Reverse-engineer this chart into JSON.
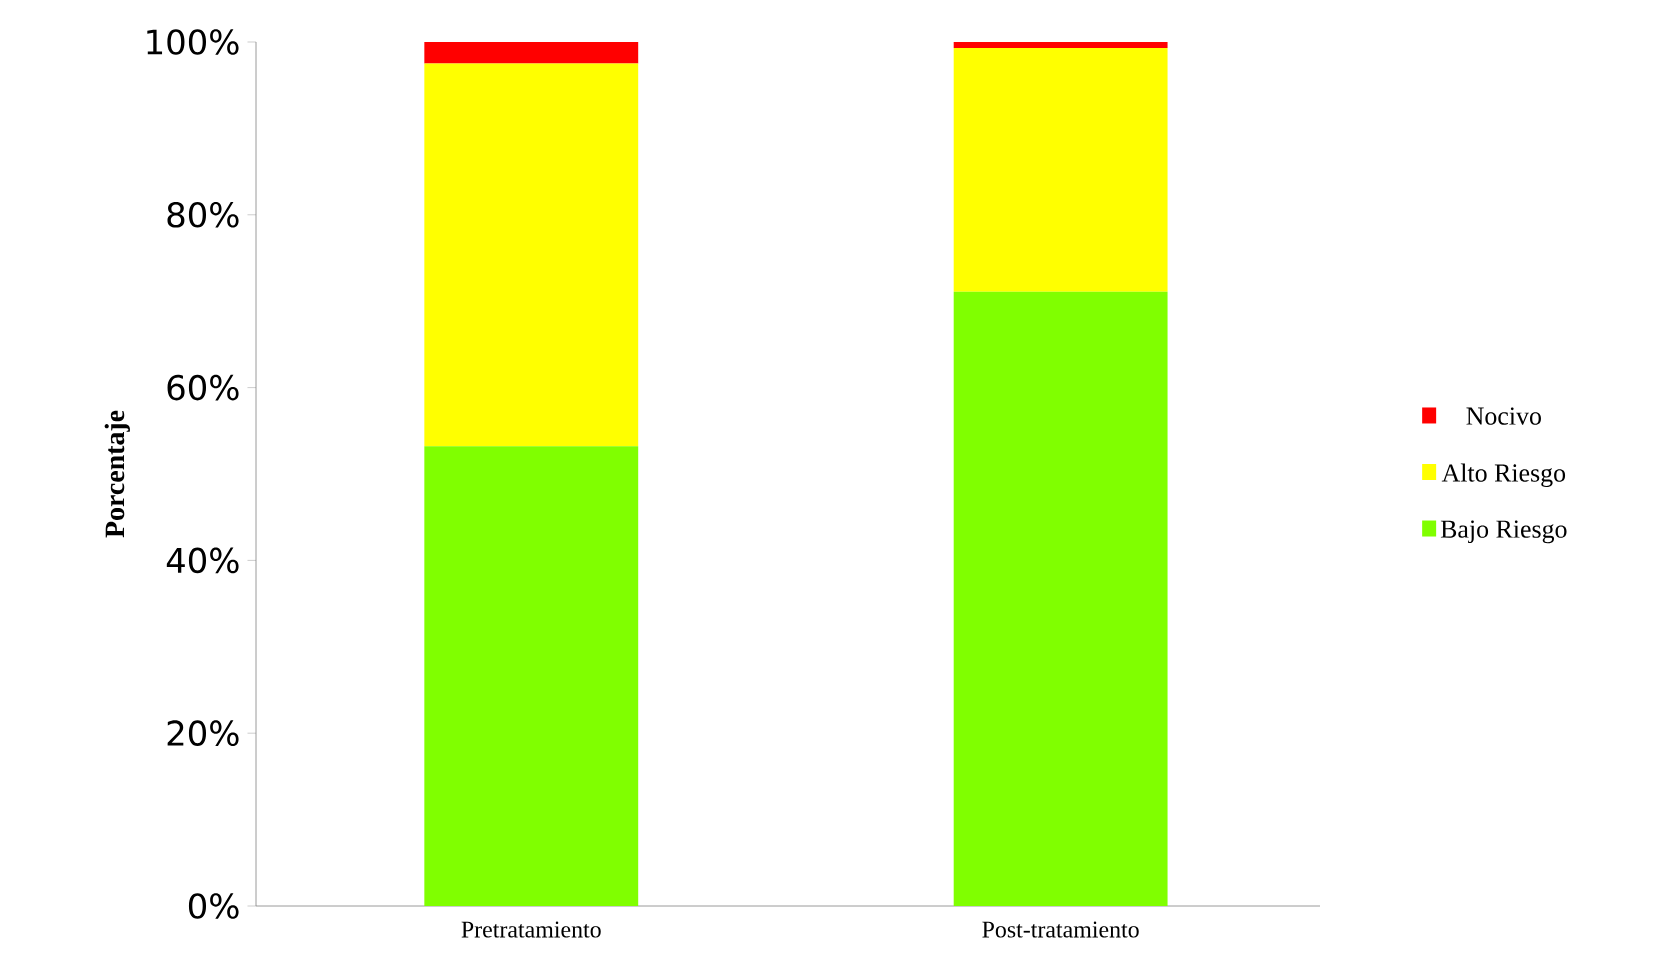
{
  "chart_data": {
    "type": "bar",
    "stacked": true,
    "ylabel": "Porcentaje",
    "categories": [
      "Pretratamiento",
      "Post-tratamiento"
    ],
    "series": [
      {
        "name": "Bajo Riesgo",
        "color": "#80ff00",
        "values": [
          53.2,
          71.1
        ]
      },
      {
        "name": "Alto Riesgo",
        "color": "#ffff00",
        "values": [
          44.3,
          28.2
        ]
      },
      {
        "name": "Nocivo",
        "color": "#ff0000",
        "values": [
          2.5,
          0.7
        ]
      }
    ],
    "ylim": [
      0,
      100
    ],
    "yticks": [
      {
        "value": 0,
        "label": "0%"
      },
      {
        "value": 20,
        "label": "20%"
      },
      {
        "value": 40,
        "label": "40%"
      },
      {
        "value": 60,
        "label": "60%"
      },
      {
        "value": 80,
        "label": "80%"
      },
      {
        "value": 100,
        "label": "100%"
      }
    ],
    "legend": "right",
    "grid": false
  }
}
